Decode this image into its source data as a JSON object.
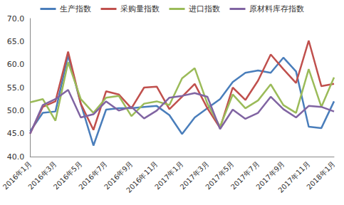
{
  "chart_data": {
    "type": "line",
    "categories": [
      "2016年1月",
      null,
      "2016年3月",
      null,
      "2016年5月",
      null,
      "2016年7月",
      null,
      "2016年9月",
      null,
      "2016年11月",
      null,
      "2017年1月",
      null,
      "2017年3月",
      null,
      "2017年5月",
      null,
      "2017年7月",
      null,
      "2017年9月",
      null,
      "2017年11月",
      null,
      "2018年1月"
    ],
    "series": [
      {
        "name": "生产指数",
        "color": "#4a7ebb",
        "values": [
          45.5,
          49.5,
          49.8,
          62.0,
          51.5,
          42.4,
          50.2,
          50.5,
          50.5,
          50.8,
          51.0,
          49.0,
          44.9,
          48.5,
          50.5,
          52.5,
          56.2,
          58.2,
          58.7,
          58.2,
          61.5,
          58.5,
          46.5,
          46.2,
          52.0
        ]
      },
      {
        "name": "采购量指数",
        "color": "#c0504d",
        "values": [
          45.0,
          50.8,
          52.0,
          62.8,
          51.5,
          45.8,
          54.2,
          53.5,
          50.5,
          55.0,
          55.2,
          50.3,
          53.0,
          55.8,
          50.5,
          46.2,
          55.0,
          52.3,
          56.5,
          62.2,
          59.0,
          56.0,
          65.2,
          55.3,
          55.8
        ]
      },
      {
        "name": "进口指数",
        "color": "#9bbb59",
        "values": [
          51.8,
          52.5,
          47.8,
          60.5,
          52.5,
          49.5,
          52.8,
          53.2,
          48.8,
          51.5,
          52.0,
          51.2,
          57.0,
          59.2,
          51.5,
          46.5,
          53.5,
          50.5,
          52.2,
          55.7,
          51.2,
          49.5,
          59.0,
          50.8,
          57.2
        ]
      },
      {
        "name": "原材料库存指数",
        "color": "#8064a2",
        "values": [
          45.0,
          51.2,
          52.5,
          54.5,
          48.5,
          49.2,
          52.0,
          50.0,
          50.8,
          48.3,
          50.0,
          52.8,
          53.2,
          53.8,
          53.0,
          46.0,
          50.2,
          48.2,
          49.5,
          53.0,
          50.3,
          48.5,
          51.0,
          50.8,
          49.8
        ]
      }
    ],
    "ylim": [
      40,
      70
    ],
    "yticks": [
      {
        "value": 40,
        "label": "40.0"
      },
      {
        "value": 45,
        "label": "45.0"
      },
      {
        "value": 50,
        "label": "50.0"
      },
      {
        "value": 55,
        "label": "55.0"
      },
      {
        "value": 60,
        "label": "60.0"
      },
      {
        "value": 65,
        "label": "65.0"
      },
      {
        "value": 70,
        "label": "70.0"
      }
    ],
    "grid": false,
    "legend": "top"
  }
}
